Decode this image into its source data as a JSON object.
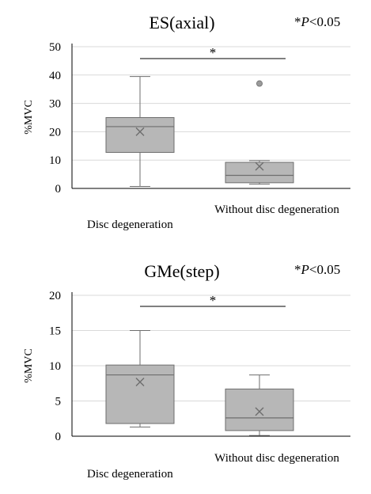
{
  "chart_data": [
    {
      "type": "box",
      "title": "ES(axial)",
      "significance_note": "*P<0.05",
      "ylabel": "%MVC",
      "ylim": [
        0,
        50
      ],
      "yticks": [
        "0",
        "10",
        "20",
        "30",
        "40",
        "50"
      ],
      "significance_marker": "*",
      "grid": true,
      "box_color": "#b7b7b7",
      "categories": [
        "Disc degeneration",
        "Without disc degeneration"
      ],
      "boxes": [
        {
          "category": "Disc degeneration",
          "min": 0.7,
          "q1": 12.7,
          "median": 21.8,
          "q3": 25.0,
          "max": 39.5,
          "mean": 20.0,
          "outliers": []
        },
        {
          "category": "Without disc degeneration",
          "min": 1.5,
          "q1": 2.0,
          "median": 4.6,
          "q3": 9.2,
          "max": 9.8,
          "mean": 7.8,
          "outliers": [
            37.0
          ]
        }
      ]
    },
    {
      "type": "box",
      "title": "GMe(step)",
      "significance_note": "*P<0.05",
      "ylabel": "%MVC",
      "ylim": [
        0,
        20
      ],
      "yticks": [
        "0",
        "5",
        "10",
        "15",
        "20"
      ],
      "significance_marker": "*",
      "grid": true,
      "box_color": "#b7b7b7",
      "categories": [
        "Disc degeneration",
        "Without disc degeneration"
      ],
      "boxes": [
        {
          "category": "Disc degeneration",
          "min": 1.3,
          "q1": 1.8,
          "median": 8.7,
          "q3": 10.1,
          "max": 15.0,
          "mean": 7.7,
          "outliers": []
        },
        {
          "category": "Without disc degeneration",
          "min": 0.1,
          "q1": 0.8,
          "median": 2.6,
          "q3": 6.7,
          "max": 8.7,
          "mean": 3.5,
          "outliers": []
        }
      ]
    }
  ]
}
